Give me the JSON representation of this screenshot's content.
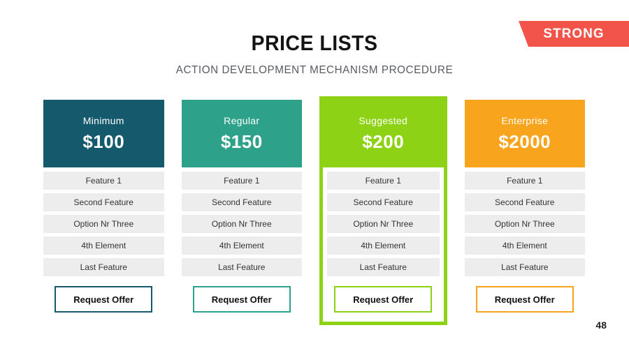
{
  "slide": {
    "title": "PRICE LISTS",
    "subtitle": "ACTION DEVELOPMENT MECHANISM PROCEDURE",
    "badge_label": "STRONG",
    "page_number": "48"
  },
  "colors": {
    "badge_red": "#f2544a",
    "minimum_header": "#15596d",
    "regular_header": "#2da189",
    "suggested_header": "#8dd214",
    "enterprise_header": "#f8a41c",
    "feature_row_gray": "#ededed"
  },
  "plans": [
    {
      "name": "Minimum",
      "price": "$100",
      "features": [
        "Feature 1",
        "Second Feature",
        "Option Nr Three",
        "4th Element",
        "Last Feature"
      ],
      "button_label": "Request Offer",
      "highlighted": false
    },
    {
      "name": "Regular",
      "price": "$150",
      "features": [
        "Feature 1",
        "Second Feature",
        "Option Nr Three",
        "4th Element",
        "Last Feature"
      ],
      "button_label": "Request Offer",
      "highlighted": false
    },
    {
      "name": "Suggested",
      "price": "$200",
      "features": [
        "Feature 1",
        "Second Feature",
        "Option Nr Three",
        "4th Element",
        "Last Feature"
      ],
      "button_label": "Request Offer",
      "highlighted": true
    },
    {
      "name": "Enterprise",
      "price": "$2000",
      "features": [
        "Feature 1",
        "Second Feature",
        "Option Nr Three",
        "4th Element",
        "Last Feature"
      ],
      "button_label": "Request Offer",
      "highlighted": false
    }
  ]
}
